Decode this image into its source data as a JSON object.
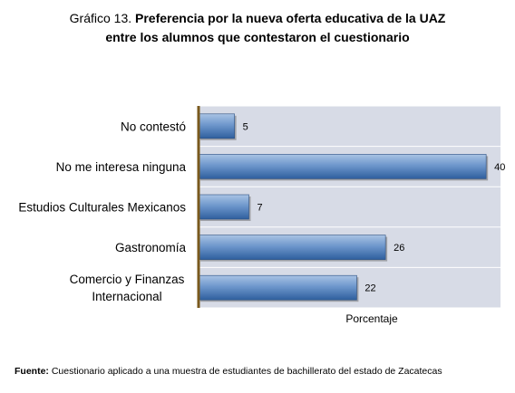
{
  "title": {
    "prefix": "Gráfico 13. ",
    "line1": "Preferencia por la nueva oferta educativa de la UAZ",
    "line2": "entre los alumnos que contestaron el cuestionario"
  },
  "source": {
    "label": "Fuente:",
    "text": " Cuestionario aplicado a una muestra de estudiantes de bachillerato del estado de Zacatecas"
  },
  "chart_data": {
    "type": "bar",
    "orientation": "horizontal",
    "categories": [
      "No contestó",
      "No me interesa ninguna",
      "Estudios Culturales Mexicanos",
      "Gastronomía",
      [
        "Comercio y Finanzas",
        "Internacional"
      ]
    ],
    "values": [
      5,
      40,
      7,
      26,
      22
    ],
    "xlabel": "Porcentaje",
    "xlim": [
      0,
      42
    ],
    "data_labels": [
      "5",
      "40",
      "7",
      "26",
      "22"
    ],
    "grid": true,
    "bar_color": "#4f81bd",
    "plot_background": "#d7dbe6",
    "axis_color": "#7a5a1e"
  }
}
